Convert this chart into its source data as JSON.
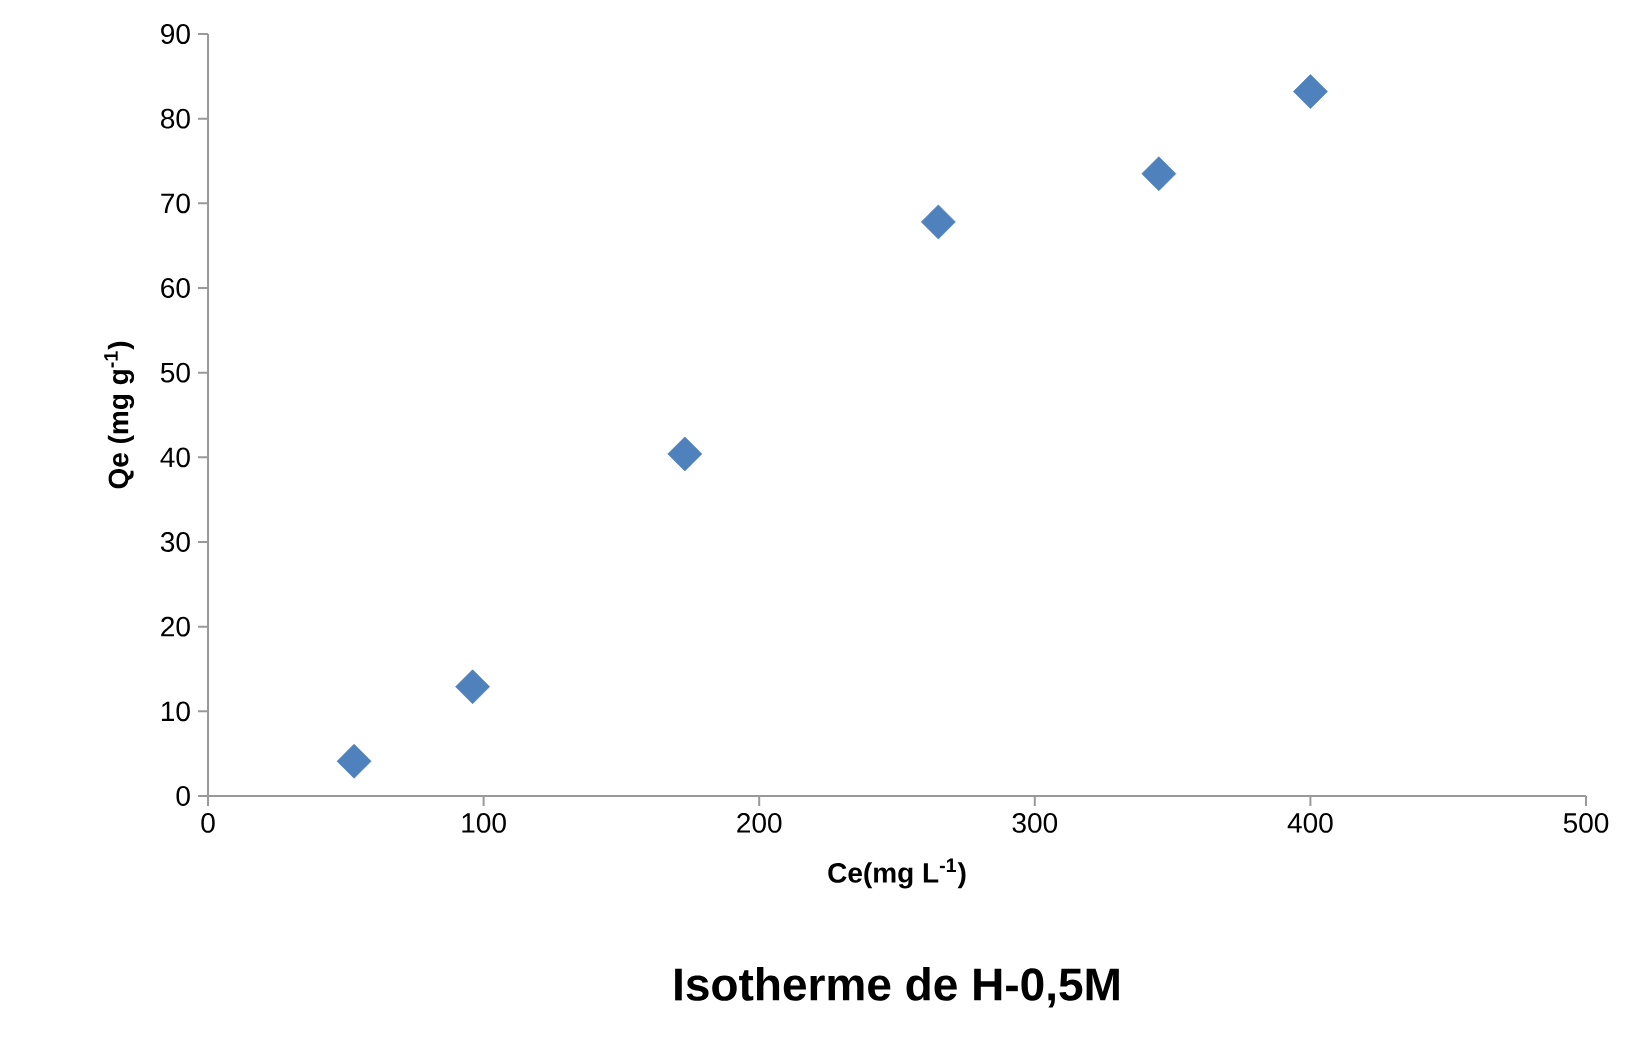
{
  "chart_data": {
    "type": "scatter",
    "title": "Isotherme de H-0,5M",
    "xlabel": "Ce(mg L$^{-1}$)",
    "ylabel": "Qe (mg g$^{-1}$)",
    "x": [
      53,
      96,
      173,
      265,
      345,
      400
    ],
    "values": [
      4.1,
      12.9,
      40.4,
      67.8,
      73.5,
      83.2
    ],
    "color": "#4f81bd",
    "marker": "diamond",
    "xlim": [
      0,
      500
    ],
    "xticks": [
      0,
      100,
      200,
      300,
      400,
      500
    ],
    "ylim": [
      0,
      90
    ],
    "yticks": [
      0,
      10,
      20,
      30,
      40,
      50,
      60,
      70,
      80,
      90
    ],
    "grid": false
  }
}
